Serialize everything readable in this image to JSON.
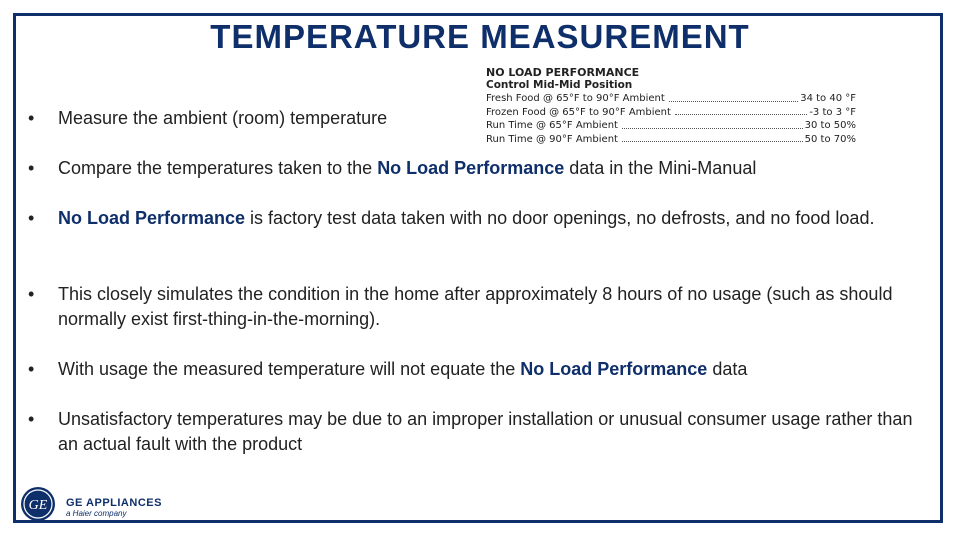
{
  "title": "TEMPERATURE MEASUREMENT",
  "spec_table": {
    "heading": "NO LOAD PERFORMANCE",
    "subheading": "Control Mid-Mid Position",
    "rows": [
      {
        "label": "Fresh Food @ 65°F to 90°F Ambient",
        "value": "34 to 40 °F"
      },
      {
        "label": "Frozen Food @ 65°F to 90°F Ambient",
        "value": "-3 to 3 °F"
      },
      {
        "label": "Run Time @ 65°F Ambient",
        "value": "30 to 50%"
      },
      {
        "label": "Run Time @ 90°F Ambient",
        "value": "50 to 70%"
      }
    ]
  },
  "bullets": [
    {
      "parts": [
        {
          "t": "Measure the ambient (room) temperature",
          "b": false
        }
      ]
    },
    {
      "parts": [
        {
          "t": "Compare the temperatures taken to the ",
          "b": false
        },
        {
          "t": "No Load Performance",
          "b": true
        },
        {
          "t": " data in the Mini-Manual",
          "b": false
        }
      ]
    },
    {
      "parts": [
        {
          "t": "No Load Performance",
          "b": true
        },
        {
          "t": " is factory test data taken with no door openings, no defrosts, and no food load.",
          "b": false
        }
      ]
    },
    {
      "parts": [
        {
          "t": "This closely simulates the condition in the home after approximately 8 hours of no usage (such as should normally exist first-thing-in-the-morning).",
          "b": false
        }
      ]
    },
    {
      "parts": [
        {
          "t": "With usage the measured temperature will not equate the ",
          "b": false
        },
        {
          "t": "No Load Performance",
          "b": true
        },
        {
          "t": " data",
          "b": false
        }
      ]
    },
    {
      "parts": [
        {
          "t": "Unsatisfactory temperatures may be due to an improper installation or unusual consumer usage rather than an actual fault with the product",
          "b": false
        }
      ]
    }
  ],
  "bullet_glyph": "•",
  "footer": {
    "logo_text": "GE",
    "brand_name": "GE APPLIANCES",
    "brand_sub": "a Haier company"
  },
  "colors": {
    "accent": "#0f2f6b",
    "text": "#222222"
  }
}
